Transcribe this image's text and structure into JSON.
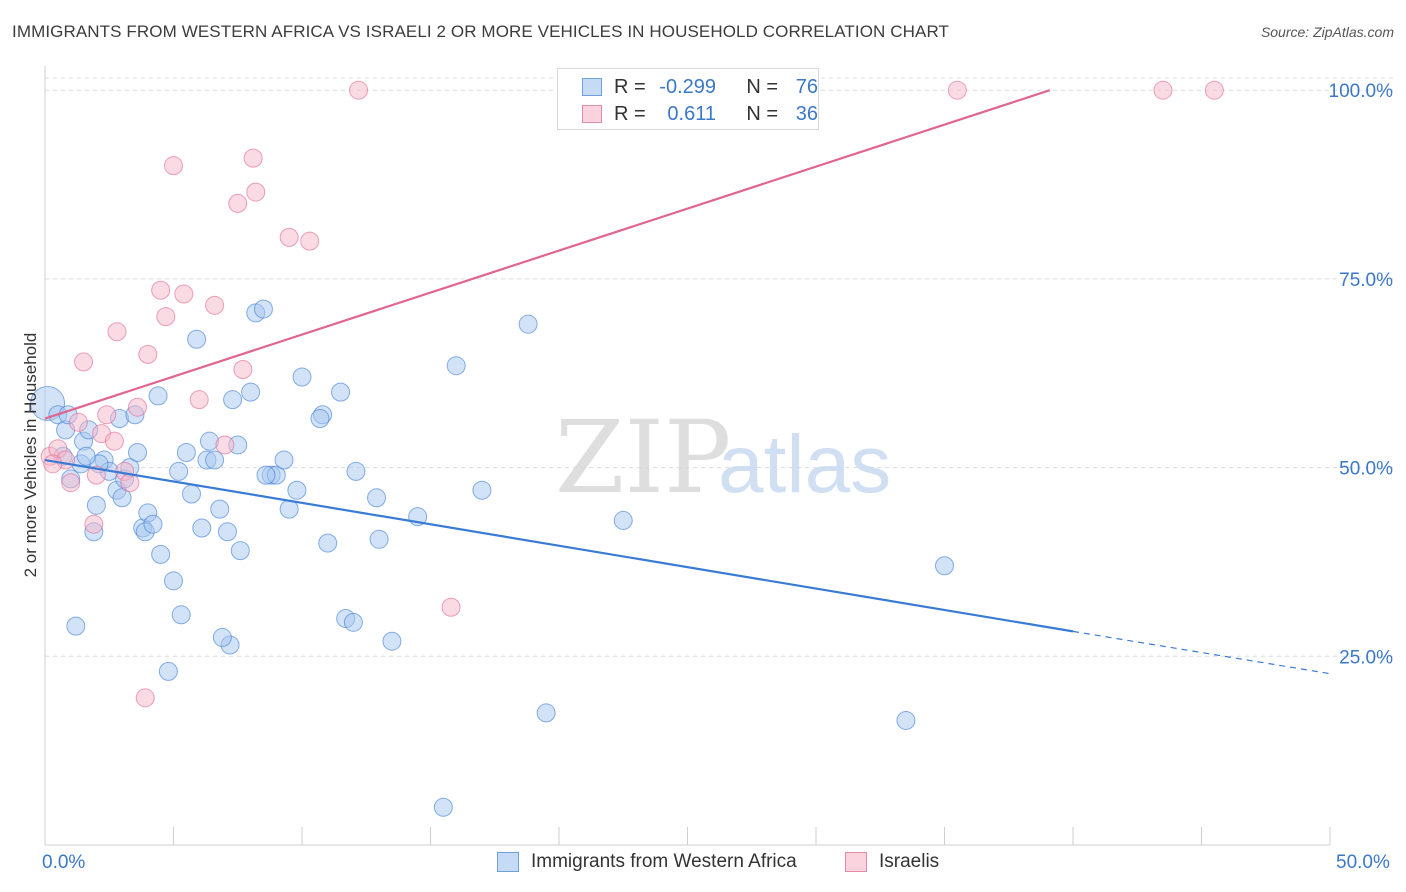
{
  "title": "IMMIGRANTS FROM WESTERN AFRICA VS ISRAELI 2 OR MORE VEHICLES IN HOUSEHOLD CORRELATION CHART",
  "source": "Source: ZipAtlas.com",
  "watermark": {
    "zip": "ZIP",
    "atlas": "atlas"
  },
  "legend_top": [
    {
      "r_label": "R =",
      "r_value": "-0.299",
      "n_label": "N =",
      "n_value": "76",
      "color": "#a8c8f0"
    },
    {
      "r_label": "R =",
      "r_value": "0.611",
      "n_label": "N =",
      "n_value": "36",
      "color": "#f5b7c9"
    }
  ],
  "legend_bottom": [
    {
      "label": "Immigrants from Western Africa",
      "color": "#a8c8f0"
    },
    {
      "label": "Israelis",
      "color": "#f5b7c9"
    }
  ],
  "chart_data": {
    "type": "scatter",
    "xlabel": "",
    "ylabel": "2 or more Vehicles in Household",
    "xlim": [
      0,
      50
    ],
    "ylim": [
      0,
      104
    ],
    "x_tick_labels": [
      "0.0%",
      "50.0%"
    ],
    "y_ticks": [
      25,
      50,
      75,
      100
    ],
    "y_tick_labels": [
      "25.0%",
      "50.0%",
      "75.0%",
      "100.0%"
    ],
    "grid": true,
    "series": [
      {
        "name": "Immigrants from Western Africa",
        "color": "#3a7bd5",
        "fill": "#a8c8f0",
        "trend": {
          "x0": 0,
          "y0": 51.0,
          "x1": 40,
          "y1": 28.3,
          "dash_to_x": 50,
          "dash_to_y": 22.7
        },
        "points": [
          [
            0.1,
            58.5
          ],
          [
            0.5,
            57.0
          ],
          [
            0.8,
            55.0
          ],
          [
            0.7,
            51.5
          ],
          [
            1.0,
            48.5
          ],
          [
            1.4,
            50.5
          ],
          [
            1.5,
            53.5
          ],
          [
            1.7,
            55.0
          ],
          [
            2.0,
            45.0
          ],
          [
            1.9,
            41.5
          ],
          [
            2.3,
            51.0
          ],
          [
            2.5,
            49.5
          ],
          [
            2.8,
            47.0
          ],
          [
            2.9,
            56.5
          ],
          [
            3.0,
            46.0
          ],
          [
            3.1,
            48.5
          ],
          [
            3.3,
            50.0
          ],
          [
            3.5,
            57.0
          ],
          [
            3.8,
            42.0
          ],
          [
            3.9,
            41.5
          ],
          [
            4.0,
            44.0
          ],
          [
            4.2,
            42.5
          ],
          [
            4.4,
            59.5
          ],
          [
            4.5,
            38.5
          ],
          [
            5.0,
            35.0
          ],
          [
            5.2,
            49.5
          ],
          [
            5.3,
            30.5
          ],
          [
            5.5,
            52.0
          ],
          [
            5.7,
            46.5
          ],
          [
            5.9,
            67.0
          ],
          [
            6.1,
            42.0
          ],
          [
            6.3,
            51.0
          ],
          [
            6.4,
            53.5
          ],
          [
            6.6,
            51.0
          ],
          [
            6.8,
            44.5
          ],
          [
            7.1,
            41.5
          ],
          [
            7.3,
            59.0
          ],
          [
            7.5,
            53.0
          ],
          [
            7.6,
            39.0
          ],
          [
            8.0,
            60.0
          ],
          [
            8.2,
            70.5
          ],
          [
            8.5,
            71.0
          ],
          [
            8.8,
            49.0
          ],
          [
            9.0,
            49.0
          ],
          [
            9.3,
            51.0
          ],
          [
            9.5,
            44.5
          ],
          [
            9.8,
            47.0
          ],
          [
            10.0,
            62.0
          ],
          [
            10.8,
            57.0
          ],
          [
            10.7,
            56.5
          ],
          [
            11.0,
            40.0
          ],
          [
            11.5,
            60.0
          ],
          [
            11.7,
            30.0
          ],
          [
            12.0,
            29.5
          ],
          [
            12.1,
            49.5
          ],
          [
            12.9,
            46.0
          ],
          [
            13.0,
            40.5
          ],
          [
            13.5,
            27.0
          ],
          [
            14.5,
            43.5
          ],
          [
            16.0,
            63.5
          ],
          [
            17.0,
            47.0
          ],
          [
            18.8,
            69.0
          ],
          [
            19.5,
            17.5
          ],
          [
            22.5,
            43.0
          ],
          [
            33.5,
            16.5
          ],
          [
            35.0,
            37.0
          ],
          [
            15.5,
            5.0
          ],
          [
            7.2,
            26.5
          ],
          [
            6.9,
            27.5
          ],
          [
            4.8,
            23.0
          ],
          [
            1.2,
            29.0
          ],
          [
            0.9,
            57.0
          ],
          [
            2.1,
            50.5
          ],
          [
            3.6,
            52.0
          ],
          [
            8.6,
            49.0
          ],
          [
            1.6,
            51.5
          ]
        ]
      },
      {
        "name": "Israelis",
        "color": "#e0668f",
        "fill": "#f5b7c9",
        "trend": {
          "x0": 0,
          "y0": 56.5,
          "x1": 39.1,
          "y1": 100.0
        },
        "points": [
          [
            0.2,
            51.5
          ],
          [
            0.5,
            52.5
          ],
          [
            0.8,
            51.0
          ],
          [
            1.0,
            48.0
          ],
          [
            1.3,
            56.0
          ],
          [
            1.5,
            64.0
          ],
          [
            1.9,
            42.5
          ],
          [
            2.2,
            54.5
          ],
          [
            2.4,
            57.0
          ],
          [
            2.7,
            53.5
          ],
          [
            2.8,
            68.0
          ],
          [
            3.1,
            49.5
          ],
          [
            3.3,
            48.0
          ],
          [
            3.6,
            58.0
          ],
          [
            3.9,
            19.5
          ],
          [
            4.0,
            65.0
          ],
          [
            4.5,
            73.5
          ],
          [
            4.7,
            70.0
          ],
          [
            5.0,
            90.0
          ],
          [
            5.4,
            73.0
          ],
          [
            6.0,
            59.0
          ],
          [
            6.6,
            71.5
          ],
          [
            7.0,
            53.0
          ],
          [
            7.5,
            85.0
          ],
          [
            7.7,
            63.0
          ],
          [
            8.1,
            91.0
          ],
          [
            8.2,
            86.5
          ],
          [
            9.5,
            80.5
          ],
          [
            10.3,
            80.0
          ],
          [
            12.2,
            100.0
          ],
          [
            15.8,
            31.5
          ],
          [
            35.5,
            100.0
          ],
          [
            43.5,
            100.0
          ],
          [
            45.5,
            100.0
          ],
          [
            0.3,
            50.5
          ],
          [
            2.0,
            49.0
          ]
        ]
      }
    ]
  }
}
